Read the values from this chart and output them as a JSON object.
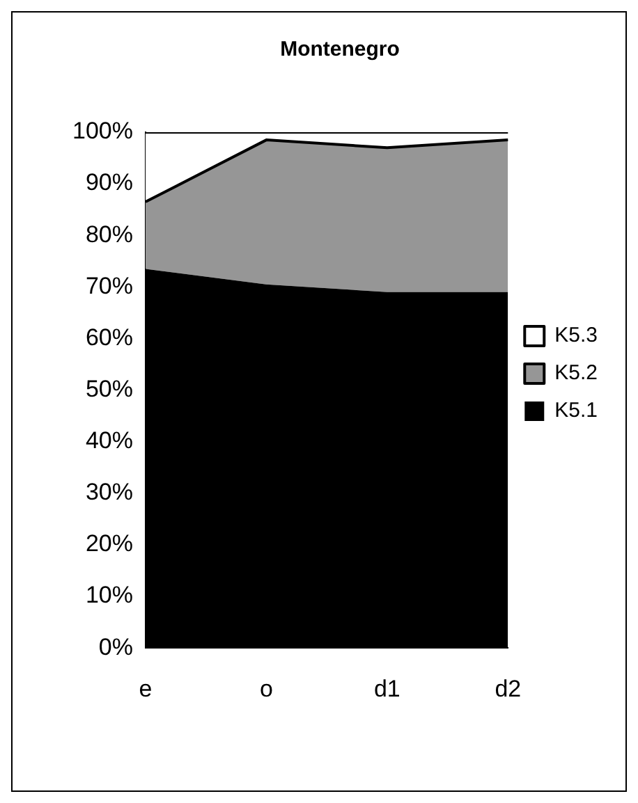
{
  "chart_data": {
    "type": "area",
    "title": "Montenegro",
    "categories": [
      "e",
      "o",
      "d1",
      "d2"
    ],
    "stacked": true,
    "legend": "right",
    "ylim": [
      0,
      100
    ],
    "yticks": [
      {
        "value": 0,
        "label": "0%"
      },
      {
        "value": 10,
        "label": "10%"
      },
      {
        "value": 20,
        "label": "20%"
      },
      {
        "value": 30,
        "label": "30%"
      },
      {
        "value": 40,
        "label": "40%"
      },
      {
        "value": 50,
        "label": "50%"
      },
      {
        "value": 60,
        "label": "60%"
      },
      {
        "value": 70,
        "label": "70%"
      },
      {
        "value": 80,
        "label": "80%"
      },
      {
        "value": 90,
        "label": "90%"
      },
      {
        "value": 100,
        "label": "100%"
      }
    ],
    "series": [
      {
        "name": "K5.1",
        "color": "#000000",
        "values": [
          73.5,
          70.5,
          69,
          69
        ]
      },
      {
        "name": "K5.2",
        "color": "#969696",
        "values": [
          13,
          28,
          28,
          29.5
        ]
      },
      {
        "name": "K5.3",
        "color": "#ffffff",
        "values": [
          13.5,
          1.5,
          3,
          1.5
        ]
      }
    ]
  }
}
